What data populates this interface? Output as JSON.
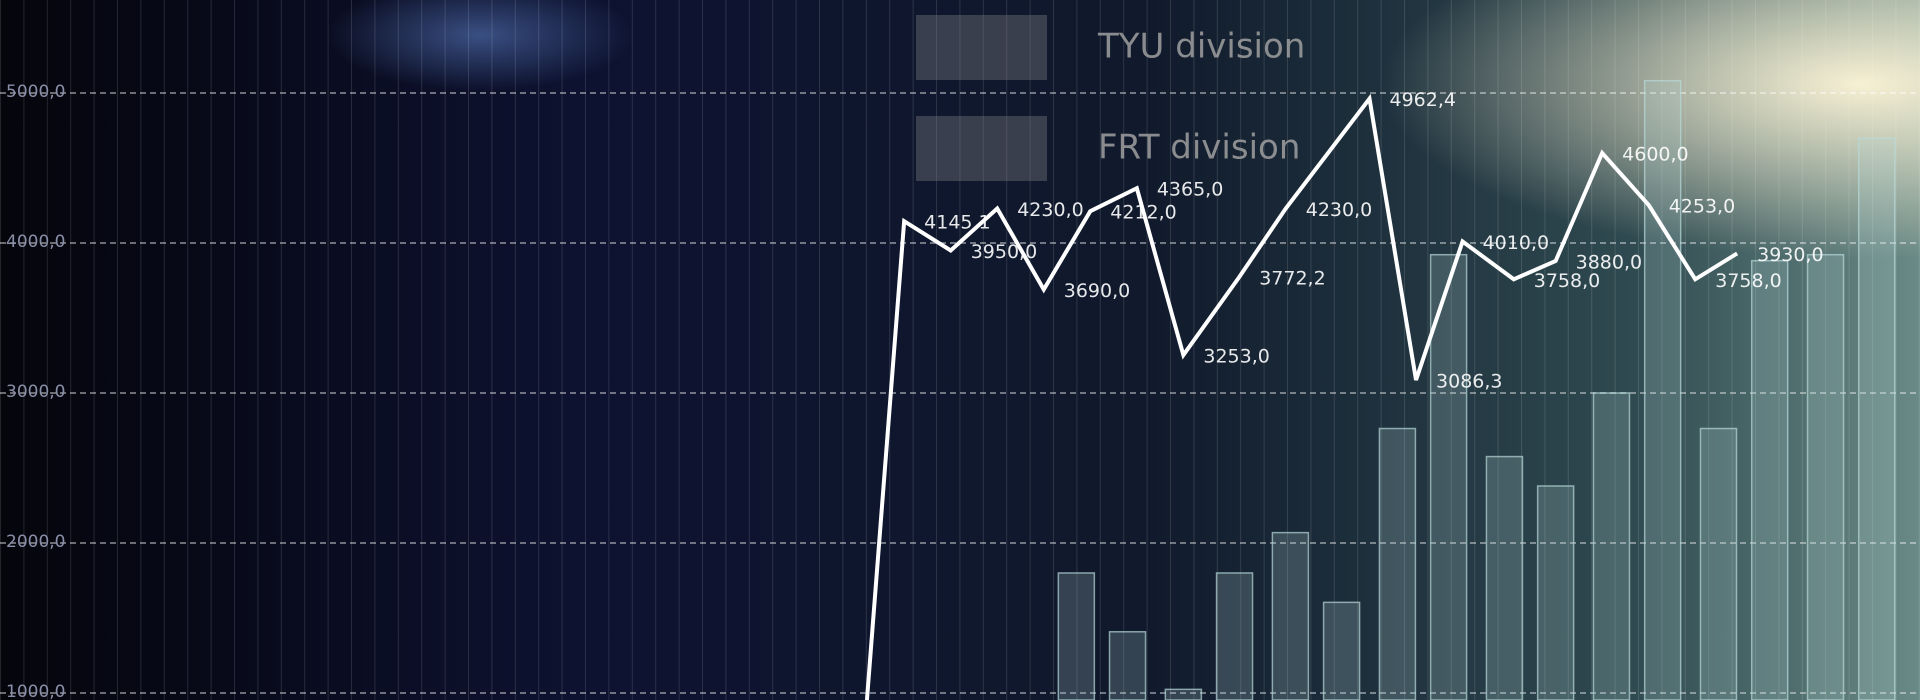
{
  "chart_data": {
    "type": "line_bar",
    "legend": "top",
    "grid": true,
    "xlim": [
      -18.63,
      22.63
    ],
    "ylim": [
      953,
      5620
    ],
    "yticks": [
      {
        "value": 1000,
        "label": "1000,0"
      },
      {
        "value": 2000,
        "label": "2000,0"
      },
      {
        "value": 3000,
        "label": "3000,0"
      },
      {
        "value": 4000,
        "label": "4000,0"
      },
      {
        "value": 5000,
        "label": "5000,0"
      }
    ],
    "series": [
      {
        "name": "TYU division",
        "type": "bar",
        "color": "#b8d8d8",
        "x": [
          4.5,
          5.6,
          6.8,
          7.9,
          9.1,
          10.2,
          11.4,
          12.5,
          13.7,
          14.8,
          16,
          17.1,
          18.3,
          19.4,
          20.6,
          21.7
        ],
        "values": [
          1800,
          1408,
          1024,
          1800,
          2069,
          1604,
          2763,
          3922,
          2576,
          2380,
          3000,
          5082,
          2763,
          3882,
          3922,
          4698
        ]
      },
      {
        "name": "FRT division",
        "type": "line",
        "color": "#ffffff",
        "x": [
          0,
          0.8,
          1.8,
          2.8,
          3.8,
          4.8,
          5.8,
          6.8,
          8,
          9,
          10.8,
          11.8,
          12.8,
          13.9,
          14.8,
          15.8,
          16.8,
          17.8,
          18.7
        ],
        "values": [
          953,
          4145.1,
          3950,
          4230,
          3690,
          4212,
          4365,
          3253,
          3772.2,
          4230,
          4962.4,
          3086.3,
          4010,
          3758,
          3880,
          4600,
          4253,
          3758,
          3930
        ],
        "value_labels": [
          null,
          "4145,1",
          "3950,0",
          "4230,0",
          "3690,0",
          "4212,0",
          "4365,0",
          "3253,0",
          "3772,2",
          "4230,0",
          "4962,4",
          "3086,3",
          "4010,0",
          "3758,0",
          "3880,0",
          "4600,0",
          "4253,0",
          "3758,0",
          "3930,0"
        ]
      }
    ]
  }
}
